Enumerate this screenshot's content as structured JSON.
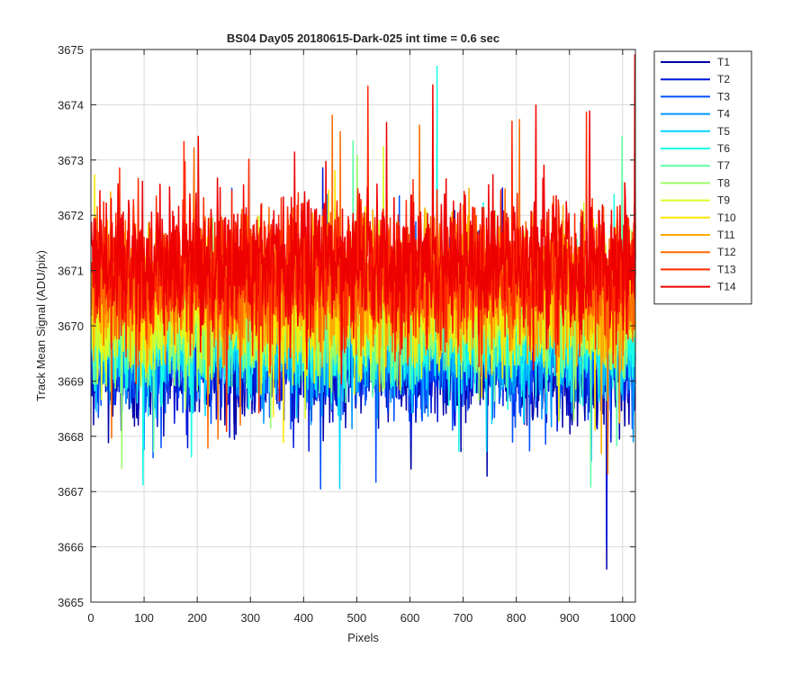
{
  "chart_data": {
    "type": "line",
    "title": "BS04 Day05 20180615-Dark-025 int time = 0.6 sec",
    "xlabel": "Pixels",
    "ylabel": "Track Mean Signal (ADU/pix)",
    "xlim": [
      0,
      1024
    ],
    "ylim": [
      3665,
      3675
    ],
    "xticks": [
      0,
      100,
      200,
      300,
      400,
      500,
      600,
      700,
      800,
      900,
      1000
    ],
    "yticks": [
      3665,
      3666,
      3667,
      3668,
      3669,
      3670,
      3671,
      3672,
      3673,
      3674,
      3675
    ],
    "grid": true,
    "legend_position": "outside top-right",
    "x_points": 1024,
    "series": [
      {
        "name": "T1",
        "color": "#0000aa",
        "mean": 3669.3,
        "spread": 0.55,
        "seed": 11,
        "min": 3665.6
      },
      {
        "name": "T2",
        "color": "#0015d9",
        "mean": 3669.5,
        "spread": 0.55,
        "seed": 23,
        "min": 3666.0
      },
      {
        "name": "T3",
        "color": "#0050ff",
        "mean": 3669.6,
        "spread": 0.55,
        "seed": 37
      },
      {
        "name": "T4",
        "color": "#0095ff",
        "mean": 3669.7,
        "spread": 0.55,
        "seed": 41
      },
      {
        "name": "T5",
        "color": "#00d5ff",
        "mean": 3669.8,
        "spread": 0.55,
        "seed": 53
      },
      {
        "name": "T6",
        "color": "#19ffe6",
        "mean": 3669.9,
        "spread": 0.55,
        "seed": 67,
        "max": 3674.7
      },
      {
        "name": "T7",
        "color": "#5affa5",
        "mean": 3670.1,
        "spread": 0.55,
        "seed": 71
      },
      {
        "name": "T8",
        "color": "#9aff65",
        "mean": 3670.2,
        "spread": 0.55,
        "seed": 83
      },
      {
        "name": "T9",
        "color": "#d9ff26",
        "mean": 3670.4,
        "spread": 0.6,
        "seed": 97
      },
      {
        "name": "T10",
        "color": "#ffe600",
        "mean": 3670.5,
        "spread": 0.6,
        "seed": 101
      },
      {
        "name": "T11",
        "color": "#ffaa00",
        "mean": 3670.6,
        "spread": 0.6,
        "seed": 113
      },
      {
        "name": "T12",
        "color": "#ff6a00",
        "mean": 3670.8,
        "spread": 0.6,
        "seed": 127
      },
      {
        "name": "T13",
        "color": "#ff2a00",
        "mean": 3671.0,
        "spread": 0.6,
        "seed": 131
      },
      {
        "name": "T14",
        "color": "#ee0000",
        "mean": 3671.2,
        "spread": 0.6,
        "seed": 139,
        "max": 3674.9
      }
    ]
  }
}
